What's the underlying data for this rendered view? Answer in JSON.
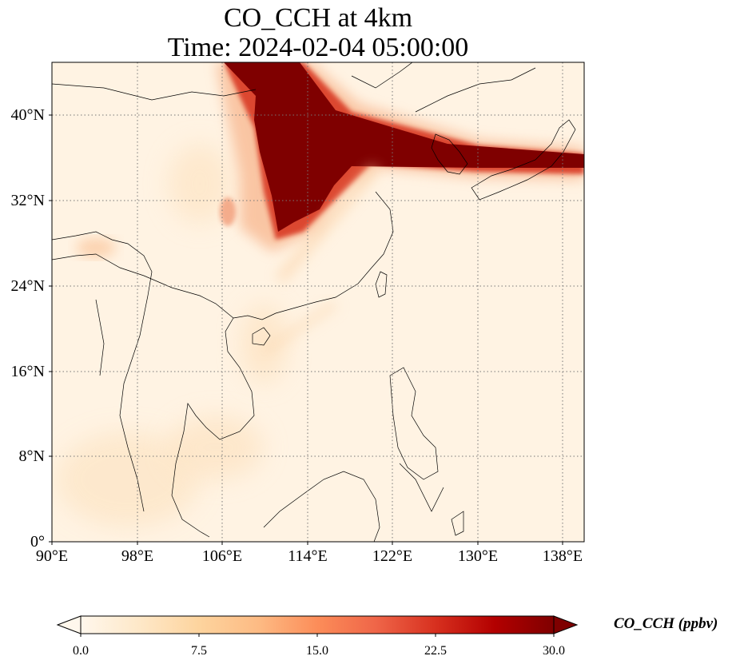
{
  "title_line1": "CO_CCH at 4km",
  "title_line2": "Time: 2024-02-04 05:00:00",
  "lat_ticks": [
    "40°N",
    "32°N",
    "24°N",
    "16°N",
    "8°N",
    "0°"
  ],
  "lon_ticks": [
    "90°E",
    "98°E",
    "106°E",
    "114°E",
    "122°E",
    "130°E",
    "138°E"
  ],
  "map_extent": {
    "lon": [
      90,
      140
    ],
    "lat": [
      0,
      45
    ]
  },
  "gridlines": "dotted",
  "colormap": "OrRd",
  "colorbar": {
    "label": "CO_CCH (ppbv)",
    "ticks": [
      "0.0",
      "7.5",
      "15.0",
      "22.5",
      "30.0"
    ],
    "range": [
      0,
      30
    ],
    "extend": "both",
    "colors": [
      "#fff7ec",
      "#fee8c8",
      "#fdd49e",
      "#fdbb84",
      "#fc8d59",
      "#ef6548",
      "#d7301f",
      "#b30000",
      "#7f0000"
    ]
  }
}
